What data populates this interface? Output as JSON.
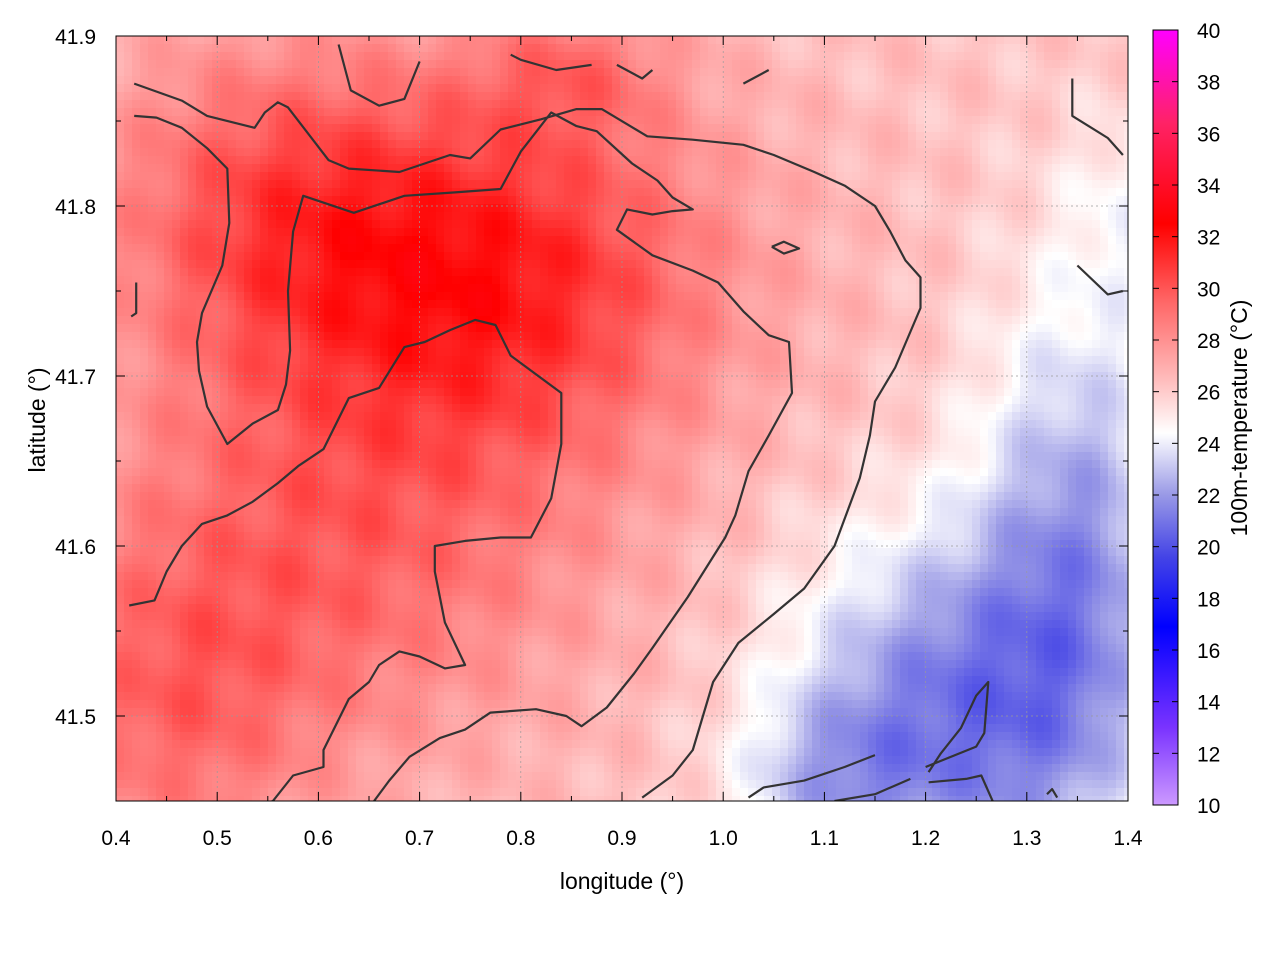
{
  "chart_data": {
    "type": "heatmap",
    "title": "",
    "xlabel": "longitude (°)",
    "ylabel": "latitude (°)",
    "colorbar_label": "100m-temperature (°C)",
    "xlim": [
      0.4,
      1.4
    ],
    "ylim": [
      41.45,
      41.9
    ],
    "x_ticks": [
      "0.4",
      "0.5",
      "0.6",
      "0.7",
      "0.8",
      "0.9",
      "1.0",
      "1.1",
      "1.2",
      "1.3",
      "1.4"
    ],
    "y_ticks": [
      "41.5",
      "41.6",
      "41.7",
      "41.8",
      "41.9"
    ],
    "colorbar_range": [
      10,
      40
    ],
    "colorbar_ticks": [
      "10",
      "12",
      "14",
      "16",
      "18",
      "20",
      "22",
      "24",
      "26",
      "28",
      "30",
      "32",
      "34",
      "36",
      "38",
      "40"
    ],
    "grid": true,
    "colors": {
      "scale": [
        "#cc99ff",
        "#7a33ff",
        "#0000ff",
        "#4444e6",
        "#9999e6",
        "#ffffff",
        "#ff9a9a",
        "#ff3333",
        "#ff0000",
        "#ff2266",
        "#ff00ff"
      ],
      "contour": "#333333"
    },
    "field_summary": {
      "description_points": [
        {
          "lon": 0.78,
          "lat": 41.75,
          "t": 31.5
        },
        {
          "lon": 0.55,
          "lat": 41.85,
          "t": 30.5
        },
        {
          "lon": 0.6,
          "lat": 41.65,
          "t": 30
        },
        {
          "lon": 0.75,
          "lat": 41.55,
          "t": 29.5
        },
        {
          "lon": 0.95,
          "lat": 41.6,
          "t": 27.5
        },
        {
          "lon": 1.0,
          "lat": 41.75,
          "t": 27.5
        },
        {
          "lon": 1.2,
          "lat": 41.85,
          "t": 26.5
        },
        {
          "lon": 1.3,
          "lat": 41.7,
          "t": 24.5
        },
        {
          "lon": 1.1,
          "lat": 41.5,
          "t": 22.5
        },
        {
          "lon": 1.3,
          "lat": 41.5,
          "t": 21
        },
        {
          "lon": 1.3,
          "lat": 41.6,
          "t": 22.5
        },
        {
          "lon": 0.45,
          "lat": 41.5,
          "t": 29.5
        }
      ]
    },
    "contours": [
      [
        [
          0.418,
          41.872
        ],
        [
          0.465,
          41.862
        ],
        [
          0.49,
          41.853
        ],
        [
          0.537,
          41.846
        ],
        [
          0.547,
          41.855
        ],
        [
          0.56,
          41.861
        ],
        [
          0.57,
          41.858
        ],
        [
          0.61,
          41.827
        ],
        [
          0.63,
          41.822
        ],
        [
          0.68,
          41.82
        ],
        [
          0.73,
          41.83
        ],
        [
          0.75,
          41.828
        ],
        [
          0.78,
          41.845
        ],
        [
          0.82,
          41.851
        ],
        [
          0.855,
          41.857
        ],
        [
          0.88,
          41.857
        ],
        [
          0.925,
          41.841
        ],
        [
          0.97,
          41.839
        ],
        [
          1.02,
          41.836
        ],
        [
          1.05,
          41.83
        ],
        [
          1.09,
          41.82
        ],
        [
          1.12,
          41.812
        ],
        [
          1.15,
          41.8
        ],
        [
          1.165,
          41.785
        ],
        [
          1.18,
          41.768
        ],
        [
          1.195,
          41.758
        ],
        [
          1.195,
          41.74
        ],
        [
          1.17,
          41.705
        ],
        [
          1.15,
          41.685
        ],
        [
          1.145,
          41.665
        ],
        [
          1.135,
          41.64
        ],
        [
          1.11,
          41.6
        ],
        [
          1.08,
          41.575
        ],
        [
          1.05,
          41.56
        ],
        [
          1.015,
          41.543
        ],
        [
          0.99,
          41.52
        ],
        [
          0.97,
          41.48
        ],
        [
          0.95,
          41.465
        ],
        [
          0.92,
          41.452
        ]
      ],
      [
        [
          0.418,
          41.853
        ],
        [
          0.44,
          41.852
        ],
        [
          0.465,
          41.846
        ],
        [
          0.49,
          41.834
        ],
        [
          0.51,
          41.822
        ],
        [
          0.512,
          41.79
        ],
        [
          0.505,
          41.765
        ],
        [
          0.485,
          41.737
        ],
        [
          0.48,
          41.72
        ],
        [
          0.482,
          41.703
        ],
        [
          0.49,
          41.682
        ],
        [
          0.51,
          41.66
        ],
        [
          0.535,
          41.672
        ],
        [
          0.56,
          41.68
        ],
        [
          0.568,
          41.695
        ],
        [
          0.572,
          41.715
        ],
        [
          0.57,
          41.75
        ],
        [
          0.575,
          41.785
        ],
        [
          0.585,
          41.806
        ],
        [
          0.635,
          41.796
        ],
        [
          0.685,
          41.806
        ],
        [
          0.735,
          41.808
        ],
        [
          0.78,
          41.81
        ],
        [
          0.8,
          41.832
        ],
        [
          0.83,
          41.855
        ],
        [
          0.855,
          41.847
        ],
        [
          0.875,
          41.844
        ],
        [
          0.91,
          41.825
        ],
        [
          0.935,
          41.815
        ],
        [
          0.95,
          41.805
        ],
        [
          0.97,
          41.798
        ],
        [
          0.95,
          41.797
        ],
        [
          0.93,
          41.795
        ],
        [
          0.905,
          41.798
        ],
        [
          0.895,
          41.786
        ],
        [
          0.93,
          41.771
        ],
        [
          0.97,
          41.762
        ],
        [
          0.995,
          41.755
        ],
        [
          1.02,
          41.738
        ],
        [
          1.045,
          41.724
        ],
        [
          1.065,
          41.72
        ],
        [
          1.068,
          41.69
        ],
        [
          1.045,
          41.665
        ],
        [
          1.025,
          41.644
        ],
        [
          1.012,
          41.618
        ],
        [
          1.002,
          41.605
        ],
        [
          0.965,
          41.57
        ],
        [
          0.93,
          41.54
        ],
        [
          0.912,
          41.525
        ],
        [
          0.885,
          41.505
        ],
        [
          0.86,
          41.494
        ],
        [
          0.845,
          41.5
        ],
        [
          0.815,
          41.504
        ],
        [
          0.77,
          41.502
        ],
        [
          0.745,
          41.492
        ],
        [
          0.72,
          41.487
        ],
        [
          0.69,
          41.476
        ],
        [
          0.67,
          41.462
        ],
        [
          0.655,
          41.45
        ]
      ],
      [
        [
          0.413,
          41.565
        ],
        [
          0.438,
          41.568
        ],
        [
          0.45,
          41.585
        ],
        [
          0.465,
          41.6
        ],
        [
          0.485,
          41.613
        ],
        [
          0.51,
          41.618
        ],
        [
          0.535,
          41.626
        ],
        [
          0.56,
          41.637
        ],
        [
          0.58,
          41.647
        ],
        [
          0.605,
          41.657
        ],
        [
          0.63,
          41.687
        ],
        [
          0.66,
          41.693
        ],
        [
          0.685,
          41.717
        ],
        [
          0.705,
          41.72
        ],
        [
          0.73,
          41.727
        ],
        [
          0.755,
          41.733
        ],
        [
          0.775,
          41.73
        ],
        [
          0.79,
          41.712
        ],
        [
          0.84,
          41.69
        ],
        [
          0.84,
          41.66
        ],
        [
          0.83,
          41.628
        ],
        [
          0.81,
          41.605
        ],
        [
          0.78,
          41.605
        ],
        [
          0.745,
          41.603
        ],
        [
          0.715,
          41.6
        ],
        [
          0.715,
          41.585
        ],
        [
          0.725,
          41.555
        ],
        [
          0.745,
          41.53
        ],
        [
          0.725,
          41.528
        ],
        [
          0.7,
          41.535
        ],
        [
          0.68,
          41.538
        ],
        [
          0.66,
          41.53
        ],
        [
          0.65,
          41.52
        ],
        [
          0.63,
          41.51
        ],
        [
          0.605,
          41.48
        ],
        [
          0.605,
          41.47
        ],
        [
          0.575,
          41.465
        ],
        [
          0.555,
          41.45
        ],
        [
          0.53,
          41.445
        ]
      ],
      [
        [
          1.35,
          41.765
        ],
        [
          1.38,
          41.748
        ],
        [
          1.395,
          41.75
        ]
      ],
      [
        [
          1.203,
          41.461
        ],
        [
          1.24,
          41.463
        ],
        [
          1.255,
          41.465
        ],
        [
          1.27,
          41.445
        ]
      ],
      [
        [
          1.203,
          41.467
        ],
        [
          1.215,
          41.478
        ],
        [
          1.235,
          41.493
        ],
        [
          1.25,
          41.512
        ],
        [
          1.262,
          41.52
        ],
        [
          1.258,
          41.49
        ],
        [
          1.25,
          41.482
        ],
        [
          1.2,
          41.47
        ]
      ],
      [
        [
          1.048,
          41.776
        ],
        [
          1.06,
          41.779
        ],
        [
          1.075,
          41.775
        ],
        [
          1.06,
          41.772
        ],
        [
          1.048,
          41.776
        ]
      ],
      [
        [
          0.62,
          41.895
        ],
        [
          0.632,
          41.868
        ],
        [
          0.66,
          41.859
        ],
        [
          0.685,
          41.863
        ],
        [
          0.7,
          41.885
        ]
      ],
      [
        [
          0.79,
          41.889
        ],
        [
          0.8,
          41.886
        ],
        [
          0.835,
          41.88
        ],
        [
          0.87,
          41.883
        ]
      ],
      [
        [
          0.895,
          41.883
        ],
        [
          0.92,
          41.875
        ],
        [
          0.93,
          41.88
        ]
      ],
      [
        [
          1.02,
          41.872
        ],
        [
          1.045,
          41.88
        ]
      ],
      [
        [
          1.345,
          41.875
        ],
        [
          1.345,
          41.853
        ],
        [
          1.38,
          41.84
        ],
        [
          1.395,
          41.83
        ]
      ],
      [
        [
          0.415,
          41.735
        ],
        [
          0.42,
          41.737
        ],
        [
          0.42,
          41.755
        ]
      ],
      [
        [
          1.025,
          41.452
        ],
        [
          1.04,
          41.458
        ],
        [
          1.08,
          41.462
        ],
        [
          1.12,
          41.47
        ],
        [
          1.15,
          41.477
        ]
      ],
      [
        [
          1.11,
          41.45
        ],
        [
          1.15,
          41.454
        ],
        [
          1.185,
          41.463
        ]
      ],
      [
        [
          1.32,
          41.454
        ],
        [
          1.325,
          41.457
        ],
        [
          1.33,
          41.452
        ]
      ]
    ]
  }
}
